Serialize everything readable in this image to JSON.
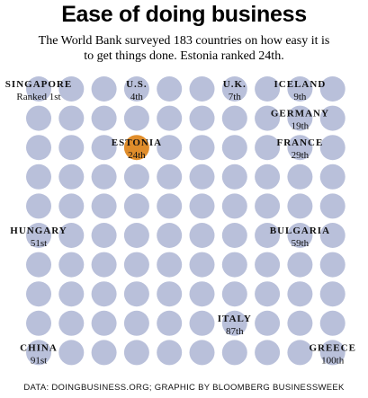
{
  "title": "Ease of doing business",
  "subtitle": "The World Bank surveyed 183 countries on how easy it is to get things done. Estonia ranked 24th.",
  "footer": "DATA: DOINGBUSINESS.ORG; GRAPHIC BY BLOOMBERG BUSINESSWEEK",
  "colors": {
    "dot": "#b9c0da",
    "highlight": "#e08d2b",
    "text": "#111111"
  },
  "chart_data": {
    "type": "table",
    "title": "Ease of doing business",
    "grid": {
      "columns": 10,
      "rows": 10
    },
    "countries": [
      {
        "name": "SINGAPORE",
        "rank_label": "Ranked 1st",
        "rank": 1,
        "col": 0,
        "row": 0,
        "highlight": false
      },
      {
        "name": "U.S.",
        "rank_label": "4th",
        "rank": 4,
        "col": 3,
        "row": 0,
        "highlight": false
      },
      {
        "name": "U.K.",
        "rank_label": "7th",
        "rank": 7,
        "col": 6,
        "row": 0,
        "highlight": false
      },
      {
        "name": "ICELAND",
        "rank_label": "9th",
        "rank": 9,
        "col": 8,
        "row": 0,
        "highlight": false
      },
      {
        "name": "GERMANY",
        "rank_label": "19th",
        "rank": 19,
        "col": 8,
        "row": 1,
        "highlight": false
      },
      {
        "name": "ESTONIA",
        "rank_label": "24th",
        "rank": 24,
        "col": 3,
        "row": 2,
        "highlight": true
      },
      {
        "name": "FRANCE",
        "rank_label": "29th",
        "rank": 29,
        "col": 8,
        "row": 2,
        "highlight": false
      },
      {
        "name": "HUNGARY",
        "rank_label": "51st",
        "rank": 51,
        "col": 0,
        "row": 5,
        "highlight": false
      },
      {
        "name": "BULGARIA",
        "rank_label": "59th",
        "rank": 59,
        "col": 8,
        "row": 5,
        "highlight": false
      },
      {
        "name": "ITALY",
        "rank_label": "87th",
        "rank": 87,
        "col": 6,
        "row": 8,
        "highlight": false
      },
      {
        "name": "CHINA",
        "rank_label": "91st",
        "rank": 91,
        "col": 0,
        "row": 9,
        "highlight": false
      },
      {
        "name": "GREECE",
        "rank_label": "100th",
        "rank": 100,
        "col": 9,
        "row": 9,
        "highlight": false
      }
    ]
  }
}
